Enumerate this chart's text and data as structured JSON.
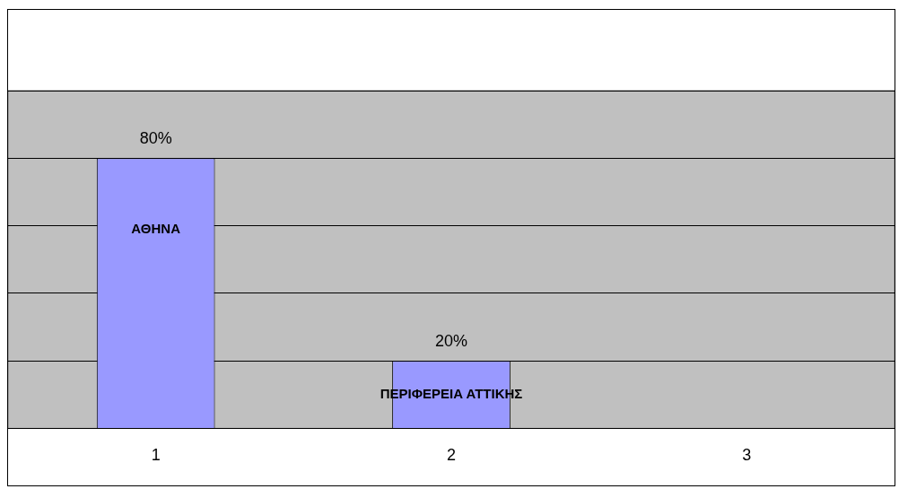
{
  "chart_data": {
    "type": "bar",
    "categories": [
      "1",
      "2",
      "3"
    ],
    "values": [
      80,
      20,
      null
    ],
    "value_labels": [
      "80%",
      "20%",
      null
    ],
    "color": "#9999ff",
    "annotations": [
      "ΑΘΗΝΑ",
      "ΠΕΡΙΦΕΡΕΙΑ ΑΤΤΙΚΗΣ"
    ],
    "tick_labels": "x",
    "grid": "y"
  }
}
